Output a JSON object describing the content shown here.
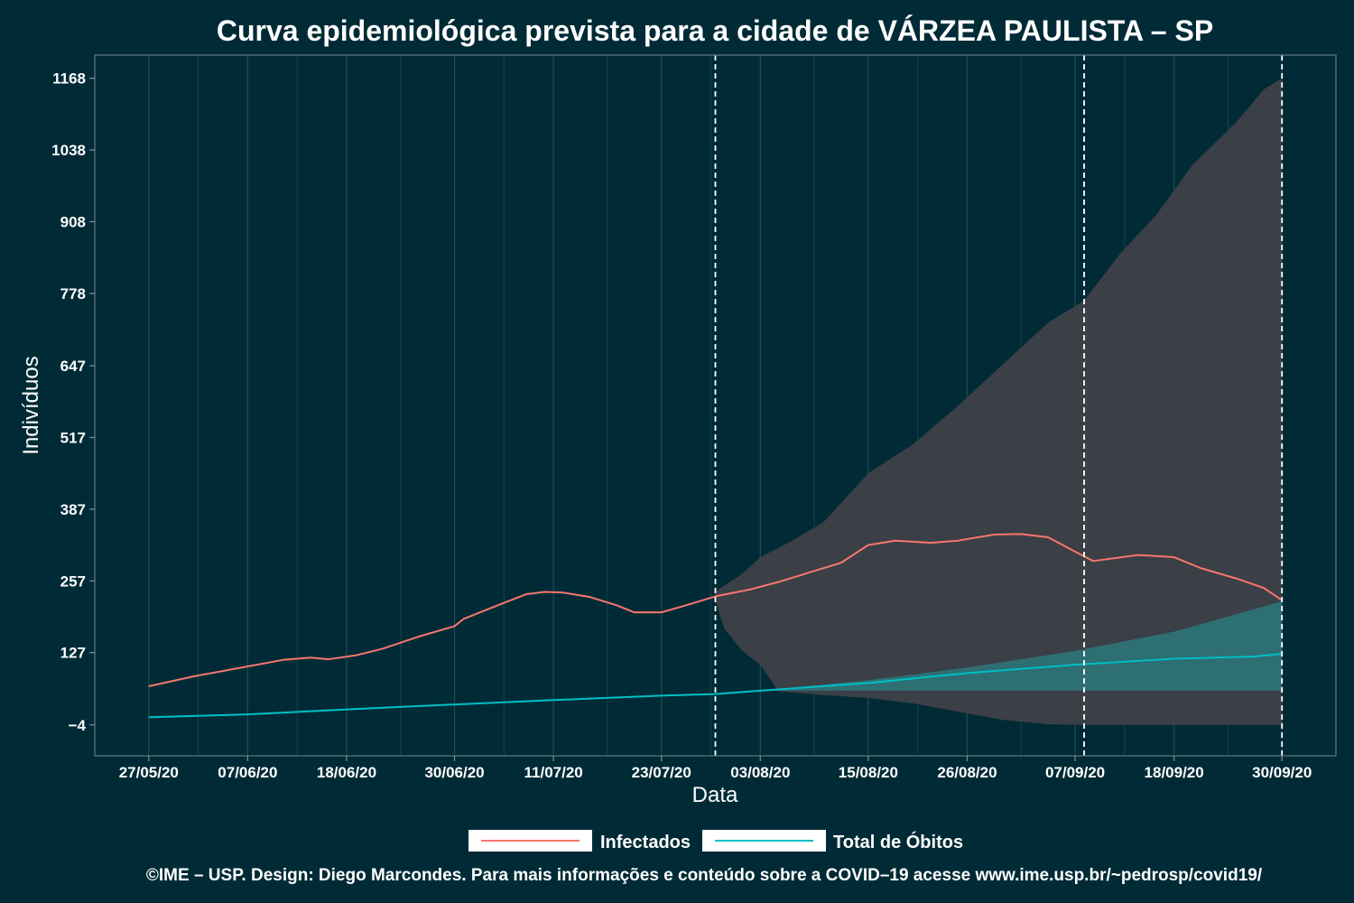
{
  "chart_data": {
    "type": "line",
    "title": "Curva epidemiológica prevista para a cidade de VÁRZEA PAULISTA – SP",
    "xlabel": "Data",
    "ylabel": "Indivíduos",
    "x_tick_labels": [
      "27/05/20",
      "07/06/20",
      "18/06/20",
      "30/06/20",
      "11/07/20",
      "23/07/20",
      "03/08/20",
      "15/08/20",
      "26/08/20",
      "07/09/20",
      "18/09/20",
      "30/09/20"
    ],
    "x_tick_dates": [
      "2020-05-27",
      "2020-06-07",
      "2020-06-18",
      "2020-06-30",
      "2020-07-11",
      "2020-07-23",
      "2020-08-03",
      "2020-08-15",
      "2020-08-26",
      "2020-09-07",
      "2020-09-18",
      "2020-09-30"
    ],
    "x_range": [
      "2020-05-21",
      "2020-10-06"
    ],
    "y_ticks": [
      -4,
      127,
      257,
      387,
      517,
      647,
      778,
      908,
      1038,
      1168
    ],
    "ylim": [
      -60,
      1210
    ],
    "grid": true,
    "vertical_markers": [
      "2020-07-29",
      "2020-09-08",
      "2020-09-30"
    ],
    "legend_position": "bottom",
    "series": [
      {
        "name": "Infectados",
        "color": "#f8766d",
        "points": [
          [
            "2020-05-27",
            66
          ],
          [
            "2020-06-01",
            84
          ],
          [
            "2020-06-07",
            102
          ],
          [
            "2020-06-11",
            114
          ],
          [
            "2020-06-14",
            118
          ],
          [
            "2020-06-16",
            115
          ],
          [
            "2020-06-19",
            122
          ],
          [
            "2020-06-22",
            134
          ],
          [
            "2020-06-26",
            156
          ],
          [
            "2020-06-30",
            175
          ],
          [
            "2020-07-01",
            188
          ],
          [
            "2020-07-05",
            214
          ],
          [
            "2020-07-08",
            233
          ],
          [
            "2020-07-10",
            237
          ],
          [
            "2020-07-12",
            236
          ],
          [
            "2020-07-15",
            228
          ],
          [
            "2020-07-18",
            213
          ],
          [
            "2020-07-20",
            200
          ],
          [
            "2020-07-23",
            200
          ],
          [
            "2020-07-26",
            214
          ],
          [
            "2020-07-29",
            229
          ],
          [
            "2020-08-02",
            242
          ],
          [
            "2020-08-05",
            255
          ],
          [
            "2020-08-09",
            275
          ],
          [
            "2020-08-12",
            290
          ],
          [
            "2020-08-15",
            322
          ],
          [
            "2020-08-18",
            330
          ],
          [
            "2020-08-22",
            326
          ],
          [
            "2020-08-25",
            330
          ],
          [
            "2020-08-29",
            341
          ],
          [
            "2020-09-01",
            342
          ],
          [
            "2020-09-04",
            336
          ],
          [
            "2020-09-07",
            310
          ],
          [
            "2020-09-09",
            293
          ],
          [
            "2020-09-14",
            304
          ],
          [
            "2020-09-18",
            300
          ],
          [
            "2020-09-21",
            280
          ],
          [
            "2020-09-25",
            261
          ],
          [
            "2020-09-28",
            244
          ],
          [
            "2020-09-30",
            222
          ]
        ]
      },
      {
        "name": "Total de Óbitos",
        "color": "#00bfc4",
        "points": [
          [
            "2020-05-27",
            10
          ],
          [
            "2020-06-07",
            15
          ],
          [
            "2020-06-18",
            24
          ],
          [
            "2020-06-30",
            33
          ],
          [
            "2020-07-11",
            41
          ],
          [
            "2020-07-23",
            49
          ],
          [
            "2020-07-29",
            52
          ],
          [
            "2020-08-03",
            58
          ],
          [
            "2020-08-15",
            72
          ],
          [
            "2020-08-26",
            90
          ],
          [
            "2020-09-07",
            105
          ],
          [
            "2020-09-18",
            116
          ],
          [
            "2020-09-27",
            120
          ],
          [
            "2020-09-30",
            125
          ]
        ]
      }
    ],
    "bands": [
      {
        "series": "Infectados",
        "color": "#3b3f46",
        "upper": [
          [
            "2020-07-29",
            238
          ],
          [
            "2020-08-01",
            270
          ],
          [
            "2020-08-03",
            300
          ],
          [
            "2020-08-06",
            325
          ],
          [
            "2020-08-10",
            363
          ],
          [
            "2020-08-15",
            452
          ],
          [
            "2020-08-20",
            505
          ],
          [
            "2020-08-25",
            575
          ],
          [
            "2020-08-30",
            650
          ],
          [
            "2020-09-04",
            725
          ],
          [
            "2020-09-08",
            765
          ],
          [
            "2020-09-12",
            850
          ],
          [
            "2020-09-16",
            920
          ],
          [
            "2020-09-20",
            1010
          ],
          [
            "2020-09-25",
            1090
          ],
          [
            "2020-09-28",
            1148
          ],
          [
            "2020-09-30",
            1168
          ]
        ],
        "lower": [
          [
            "2020-07-29",
            222
          ],
          [
            "2020-07-30",
            170
          ],
          [
            "2020-08-01",
            130
          ],
          [
            "2020-08-03",
            105
          ],
          [
            "2020-08-05",
            57
          ],
          [
            "2020-08-10",
            50
          ],
          [
            "2020-08-15",
            45
          ],
          [
            "2020-08-20",
            35
          ],
          [
            "2020-08-25",
            20
          ],
          [
            "2020-08-30",
            5
          ],
          [
            "2020-09-04",
            -3
          ],
          [
            "2020-09-08",
            -4
          ],
          [
            "2020-09-30",
            -4
          ]
        ]
      },
      {
        "series": "Total de Óbitos",
        "color": "#2e6f73",
        "upper": [
          [
            "2020-08-03",
            58
          ],
          [
            "2020-08-15",
            77
          ],
          [
            "2020-08-26",
            100
          ],
          [
            "2020-09-07",
            130
          ],
          [
            "2020-09-18",
            165
          ],
          [
            "2020-09-30",
            220
          ]
        ],
        "lower": [
          [
            "2020-08-03",
            58
          ],
          [
            "2020-08-15",
            58
          ],
          [
            "2020-09-30",
            58
          ]
        ]
      }
    ],
    "caption": "©IME – USP. Design: Diego Marcondes. Para mais informações e conteúdo sobre a COVID–19 acesse www.ime.usp.br/~pedrosp/covid19/"
  }
}
